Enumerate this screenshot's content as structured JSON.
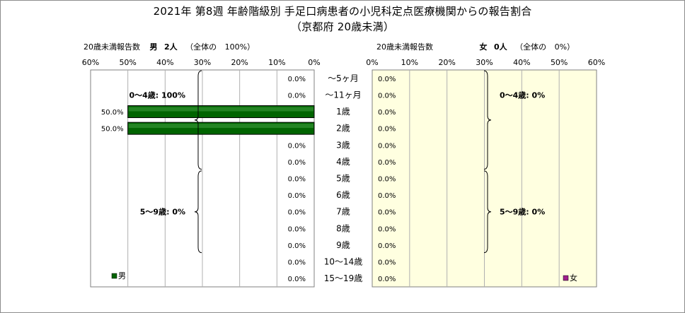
{
  "title": "2021年 第8週 年齢階級別 手足口病患者の小児科定点医療機関からの報告割合",
  "subtitle": "（京都府 20歳未満）",
  "left_header": {
    "label": "20歳未満報告数",
    "sex": "男",
    "count": "2人",
    "share_prefix": "（全体の",
    "share": "100%）"
  },
  "right_header": {
    "label": "20歳未満報告数",
    "sex": "女",
    "count": "0人",
    "share_prefix": "（全体の",
    "share": "0%）"
  },
  "chart_data": {
    "type": "bar",
    "orientation": "horizontal-pyramid",
    "categories": [
      "～5ヶ月",
      "～11ヶ月",
      "1歳",
      "2歳",
      "3歳",
      "4歳",
      "5歳",
      "6歳",
      "7歳",
      "8歳",
      "9歳",
      "10～14歳",
      "15～19歳"
    ],
    "series": [
      {
        "name": "男",
        "color": "#006400",
        "values": [
          0.0,
          0.0,
          50.0,
          50.0,
          0.0,
          0.0,
          0.0,
          0.0,
          0.0,
          0.0,
          0.0,
          0.0,
          0.0
        ],
        "value_labels": [
          "0.0%",
          "0.0%",
          "50.0%",
          "50.0%",
          "0.0%",
          "0.0%",
          "0.0%",
          "0.0%",
          "0.0%",
          "0.0%",
          "0.0%",
          "0.0%",
          "0.0%"
        ]
      },
      {
        "name": "女",
        "color": "#a0208c",
        "values": [
          0.0,
          0.0,
          0.0,
          0.0,
          0.0,
          0.0,
          0.0,
          0.0,
          0.0,
          0.0,
          0.0,
          0.0,
          0.0
        ],
        "value_labels": [
          "0.0%",
          "0.0%",
          "0.0%",
          "0.0%",
          "0.0%",
          "0.0%",
          "0.0%",
          "0.0%",
          "0.0%",
          "0.0%",
          "0.0%",
          "0.0%",
          "0.0%"
        ]
      }
    ],
    "xlim": [
      0,
      60
    ],
    "left_ticks": [
      "60%",
      "50%",
      "40%",
      "30%",
      "20%",
      "10%",
      "0%"
    ],
    "right_ticks": [
      "0%",
      "10%",
      "20%",
      "30%",
      "40%",
      "50%",
      "60%"
    ],
    "annotations": {
      "left": [
        {
          "label": "0～4歳: 100%",
          "from": 0,
          "to": 5
        },
        {
          "label": "5～9歳: 0%",
          "from": 6,
          "to": 10
        }
      ],
      "right": [
        {
          "label": "0～4歳: 0%",
          "from": 0,
          "to": 5
        },
        {
          "label": "5～9歳: 0%",
          "from": 6,
          "to": 10
        }
      ]
    },
    "grid": true,
    "legend": "bottom-left / bottom-right inside each panel",
    "plot_colors": {
      "left_bg": "#ffffff",
      "right_bg": "#ffffe0"
    }
  }
}
